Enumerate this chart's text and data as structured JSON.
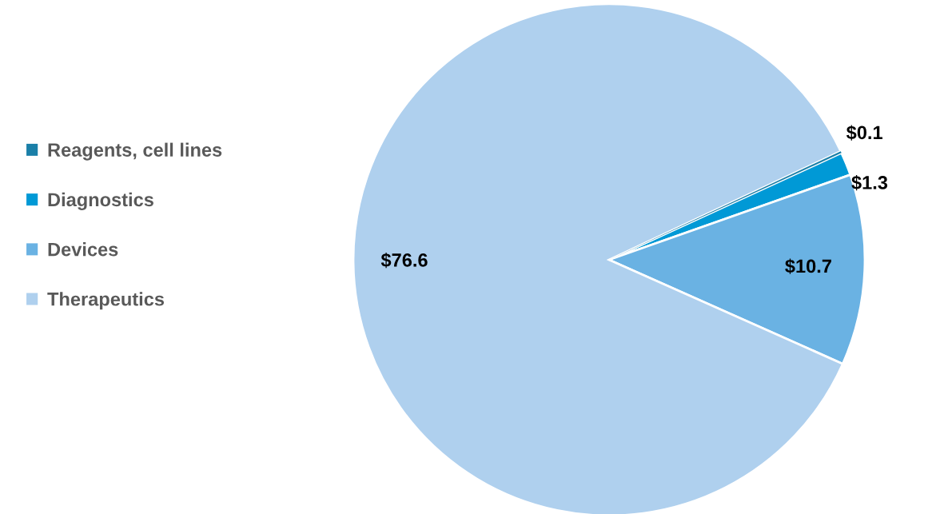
{
  "chart_data": {
    "type": "pie",
    "categories": [
      "Reagents, cell lines",
      "Diagnostics",
      "Devices",
      "Therapeutics"
    ],
    "values": [
      0.1,
      1.3,
      10.7,
      76.6
    ],
    "colors": [
      "#1a7fa8",
      "#0099d6",
      "#6ab2e3",
      "#afd0ee"
    ],
    "value_labels": [
      "$0.1",
      "$1.3",
      "$10.7",
      "$76.6"
    ],
    "legend": "left"
  }
}
